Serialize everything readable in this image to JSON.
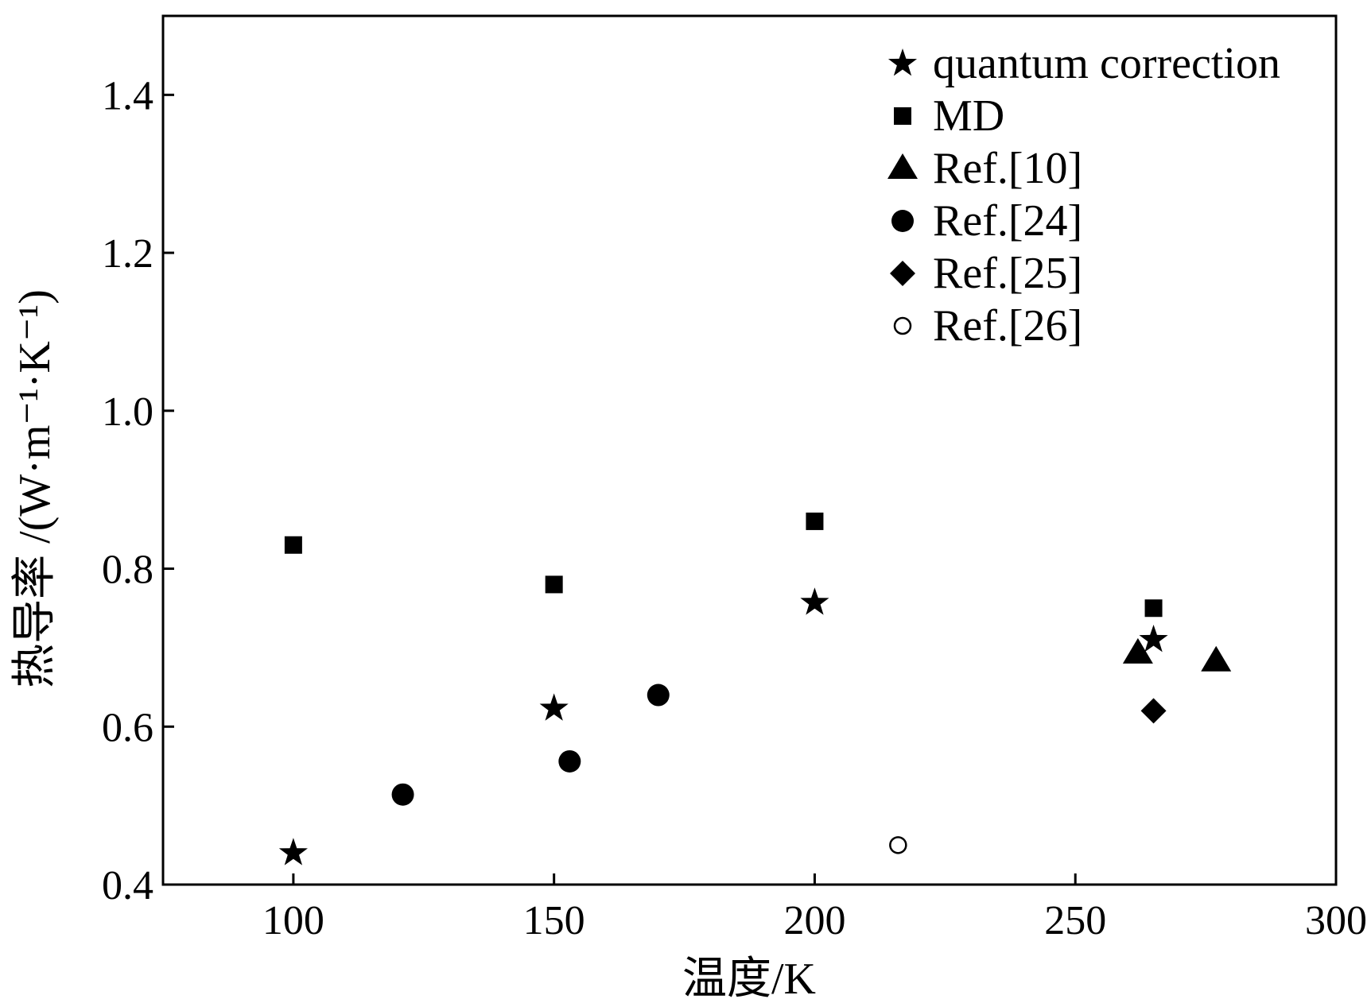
{
  "chart_data": {
    "type": "scatter",
    "xlabel": "温度/K",
    "ylabel": "热导率 /(W·m⁻¹·K⁻¹)",
    "xlim": [
      75,
      300
    ],
    "ylim": [
      0.4,
      1.5
    ],
    "xticks": [
      100,
      150,
      200,
      250,
      300
    ],
    "yticks": [
      0.4,
      0.6,
      0.8,
      1.0,
      1.2,
      1.4
    ],
    "xtick_labels": [
      "100",
      "150",
      "200",
      "250",
      "300"
    ],
    "ytick_labels": [
      "0.4",
      "0.6",
      "0.8",
      "1.0",
      "1.2",
      "1.4"
    ],
    "grid": false,
    "legend_position": "top-right",
    "series": [
      {
        "name": "quantum correction",
        "marker": "star",
        "points": [
          [
            100,
            0.44
          ],
          [
            150,
            0.623
          ],
          [
            200,
            0.757
          ],
          [
            265,
            0.71
          ]
        ]
      },
      {
        "name": "MD",
        "marker": "square",
        "points": [
          [
            100,
            0.83
          ],
          [
            150,
            0.78
          ],
          [
            200,
            0.86
          ],
          [
            265,
            0.75
          ]
        ]
      },
      {
        "name": "Ref.[10]",
        "marker": "triangle",
        "points": [
          [
            262,
            0.693
          ],
          [
            277,
            0.683
          ]
        ]
      },
      {
        "name": "Ref.[24]",
        "marker": "circle",
        "points": [
          [
            121,
            0.514
          ],
          [
            153,
            0.556
          ],
          [
            170,
            0.64
          ]
        ]
      },
      {
        "name": "Ref.[25]",
        "marker": "diamond",
        "points": [
          [
            265,
            0.62
          ]
        ]
      },
      {
        "name": "Ref.[26]",
        "marker": "open-circle",
        "points": [
          [
            216,
            0.45
          ]
        ]
      }
    ]
  }
}
